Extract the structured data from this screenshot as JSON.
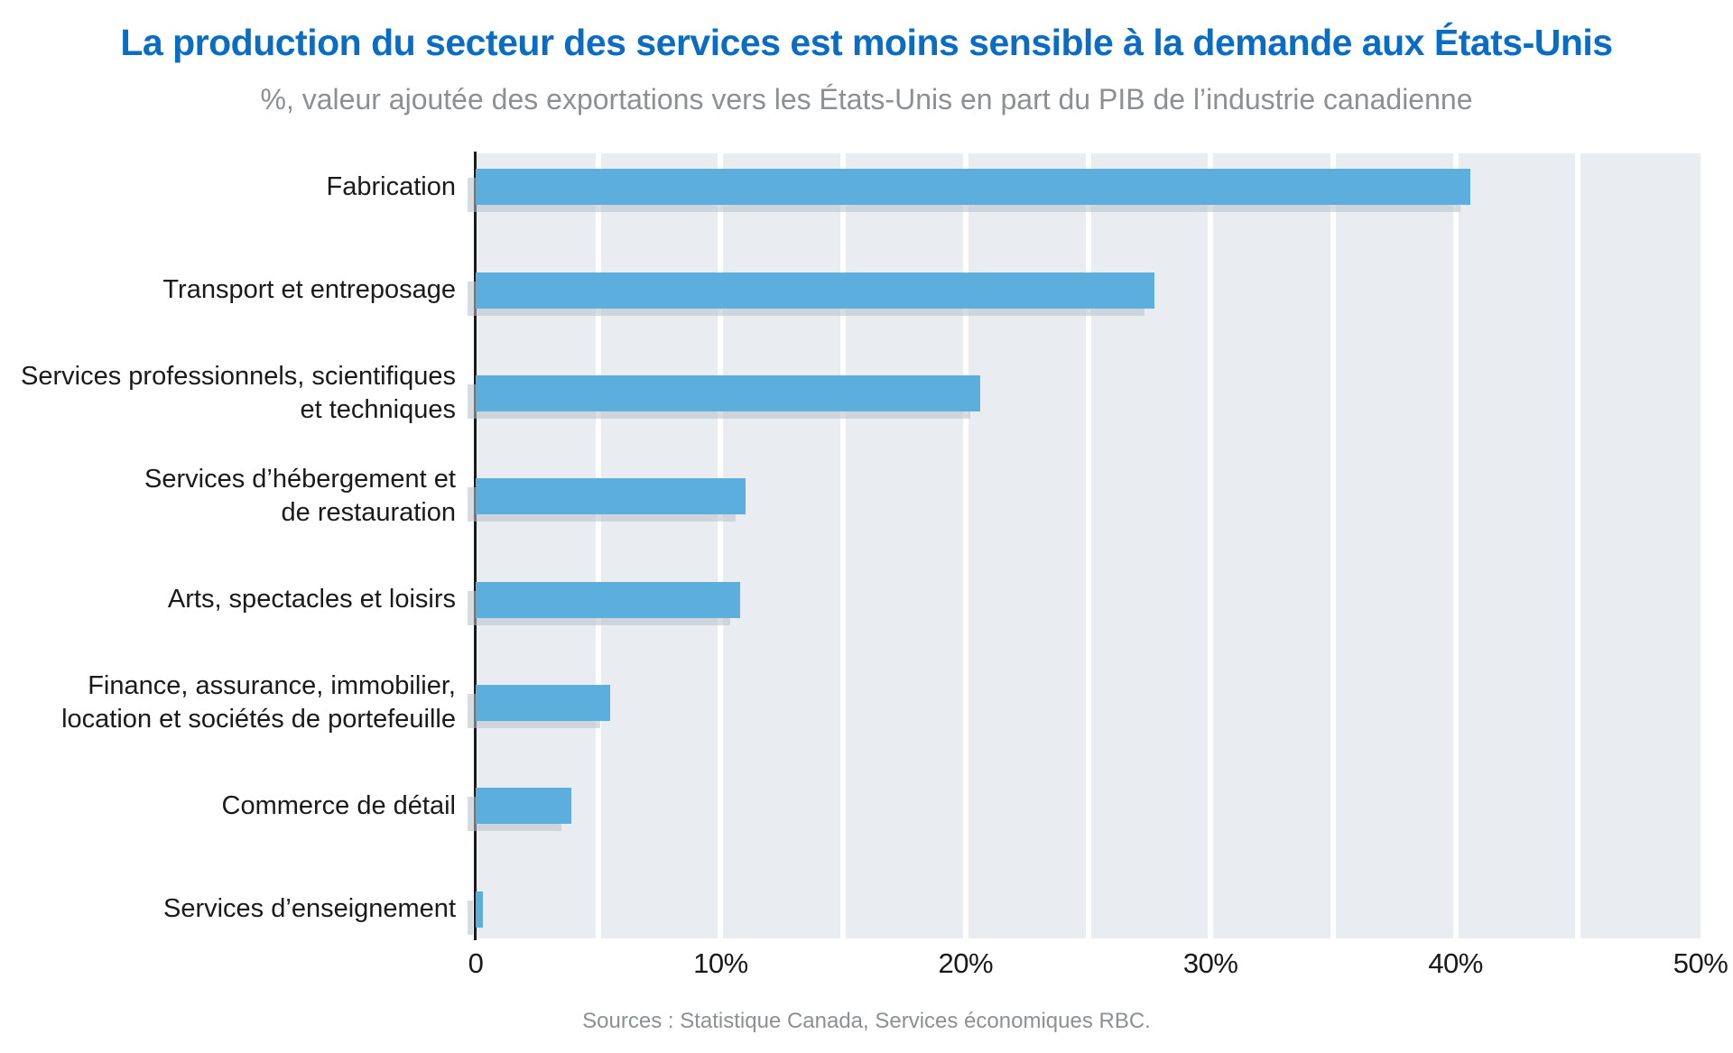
{
  "header": {
    "title": "La production du secteur des services est moins sensible à la demande aux États-Unis",
    "subtitle": "%, valeur ajoutée des exportations vers les États-Unis en part du PIB de l’industrie canadienne"
  },
  "chart_data": {
    "type": "bar",
    "orientation": "horizontal",
    "title": "La production du secteur des services est moins sensible à la demande aux États-Unis",
    "subtitle": "%, valeur ajoutée des exportations vers les États-Unis en part du PIB de l’industrie canadienne",
    "categories": [
      "Fabrication",
      "Transport et entreposage",
      "Services professionnels, scientifiques\net techniques",
      "Services d’hébergement et\nde restauration",
      "Arts, spectacles et loisirs",
      "Finance, assurance, immobilier,\nlocation et sociétés de portefeuille",
      "Commerce de détail",
      "Services d’enseignement"
    ],
    "values": [
      40.6,
      27.7,
      20.6,
      11,
      10.8,
      5.5,
      3.9,
      0.3
    ],
    "xlim": [
      0,
      50
    ],
    "x_ticks": [
      "0",
      "10%",
      "20%",
      "30%",
      "40%",
      "50%"
    ],
    "gridline_step_pct": 5,
    "grid": true,
    "legend": false,
    "xlabel": "",
    "ylabel": "",
    "colors": {
      "bar": "#5caedd",
      "plot_background": "#e9edf1",
      "gridline": "#ffffff",
      "title": "#0a6cc3",
      "subtitle_text": "#8c9093",
      "axis_text": "#1a1a1a",
      "bar_shadow": "#d5dade"
    }
  },
  "footer": {
    "source": "Sources : Statistique Canada, Services économiques RBC."
  }
}
